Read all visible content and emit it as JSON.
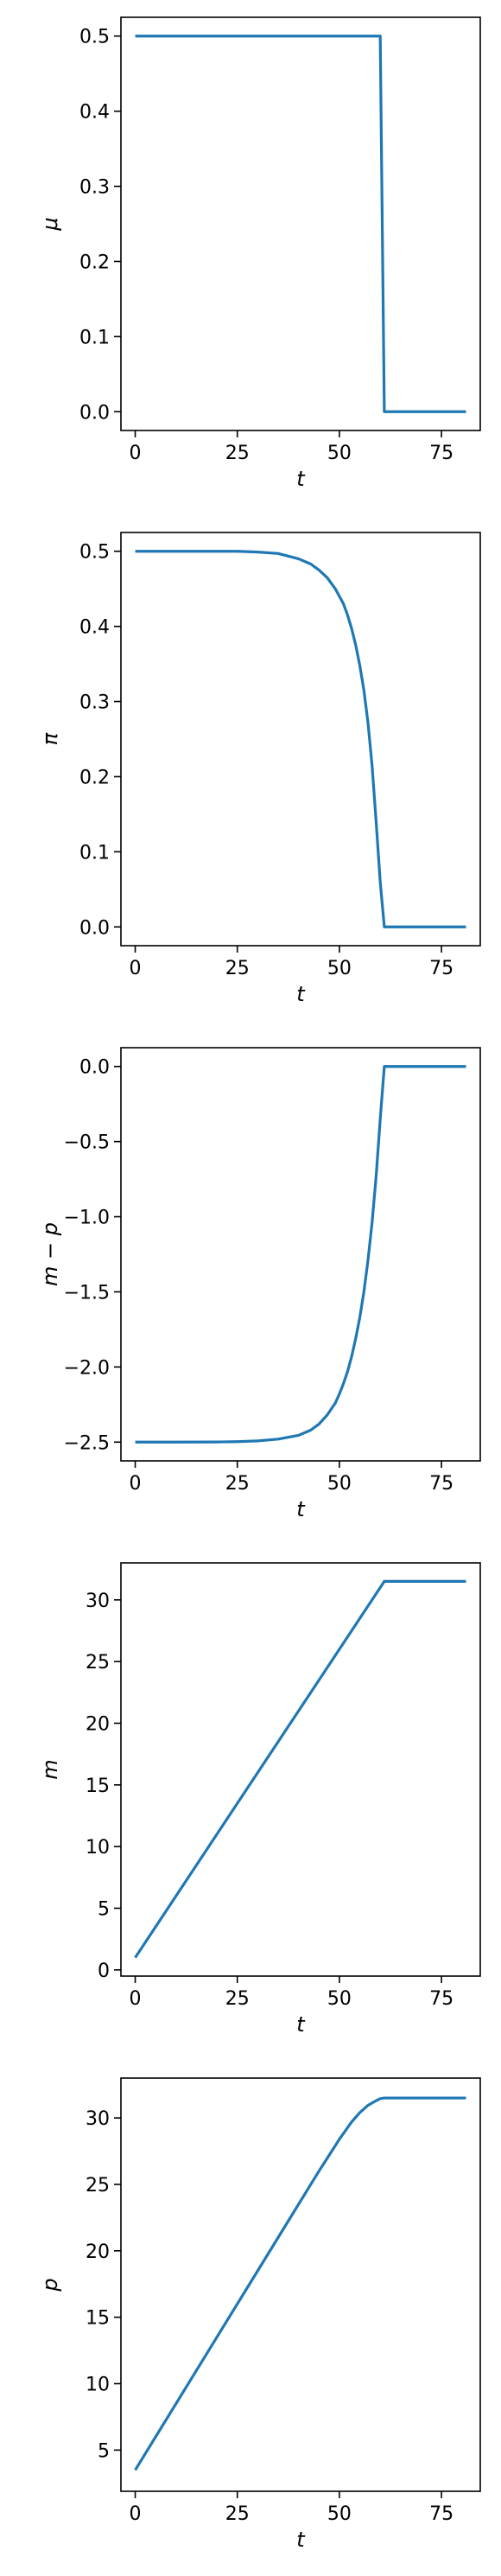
{
  "chart_data": [
    {
      "type": "line",
      "title": "",
      "xlabel": "t",
      "ylabel": "μ",
      "xlim": [
        -3.5,
        84.5
      ],
      "ylim": [
        -0.025,
        0.525
      ],
      "xticks": [
        0,
        25,
        50,
        75
      ],
      "xtick_labels": [
        "0",
        "25",
        "50",
        "75"
      ],
      "yticks": [
        0.0,
        0.1,
        0.2,
        0.3,
        0.4,
        0.5
      ],
      "ytick_labels": [
        "0.0",
        "0.1",
        "0.2",
        "0.3",
        "0.4",
        "0.5"
      ],
      "color": "#1f77b4",
      "series": [
        {
          "x": [
            0,
            60,
            61,
            81
          ],
          "y": [
            0.5,
            0.5,
            0.0,
            0.0
          ]
        }
      ]
    },
    {
      "type": "line",
      "title": "",
      "xlabel": "t",
      "ylabel": "π",
      "xlim": [
        -3.5,
        84.5
      ],
      "ylim": [
        -0.025,
        0.525
      ],
      "xticks": [
        0,
        25,
        50,
        75
      ],
      "xtick_labels": [
        "0",
        "25",
        "50",
        "75"
      ],
      "yticks": [
        0.0,
        0.1,
        0.2,
        0.3,
        0.4,
        0.5
      ],
      "ytick_labels": [
        "0.0",
        "0.1",
        "0.2",
        "0.3",
        "0.4",
        "0.5"
      ],
      "color": "#1f77b4",
      "series": [
        {
          "x": [
            0,
            10,
            20,
            25,
            30,
            35,
            40,
            43,
            45,
            47,
            49,
            50,
            51,
            52,
            53,
            54,
            55,
            56,
            57,
            58,
            59,
            60,
            61,
            81
          ],
          "y": [
            0.5,
            0.5,
            0.5,
            0.5,
            0.499,
            0.497,
            0.49,
            0.483,
            0.475,
            0.465,
            0.45,
            0.44,
            0.43,
            0.415,
            0.397,
            0.375,
            0.348,
            0.315,
            0.272,
            0.215,
            0.14,
            0.06,
            0.0,
            0.0
          ]
        }
      ]
    },
    {
      "type": "line",
      "title": "",
      "xlabel": "t",
      "ylabel": "m − p",
      "xlim": [
        -3.5,
        84.5
      ],
      "ylim": [
        -2.625,
        0.125
      ],
      "xticks": [
        0,
        25,
        50,
        75
      ],
      "xtick_labels": [
        "0",
        "25",
        "50",
        "75"
      ],
      "yticks": [
        -2.5,
        -2.0,
        -1.5,
        -1.0,
        -0.5,
        0.0
      ],
      "ytick_labels": [
        "−2.5",
        "−2.0",
        "−1.5",
        "−1.0",
        "−0.5",
        "0.0"
      ],
      "color": "#1f77b4",
      "series": [
        {
          "x": [
            0,
            10,
            20,
            25,
            30,
            35,
            40,
            43,
            45,
            47,
            49,
            50,
            51,
            52,
            53,
            54,
            55,
            56,
            57,
            58,
            59,
            60,
            61,
            81
          ],
          "y": [
            -2.5,
            -2.5,
            -2.499,
            -2.497,
            -2.492,
            -2.48,
            -2.455,
            -2.42,
            -2.38,
            -2.32,
            -2.24,
            -2.18,
            -2.11,
            -2.03,
            -1.93,
            -1.81,
            -1.67,
            -1.5,
            -1.29,
            -1.04,
            -0.73,
            -0.35,
            0.0,
            0.0
          ]
        }
      ]
    },
    {
      "type": "line",
      "title": "",
      "xlabel": "t",
      "ylabel": "m",
      "xlim": [
        -3.5,
        84.5
      ],
      "ylim": [
        -0.5,
        33.0
      ],
      "xticks": [
        0,
        25,
        50,
        75
      ],
      "xtick_labels": [
        "0",
        "25",
        "50",
        "75"
      ],
      "yticks": [
        0,
        5,
        10,
        15,
        20,
        25,
        30
      ],
      "ytick_labels": [
        "0",
        "5",
        "10",
        "15",
        "20",
        "25",
        "30"
      ],
      "color": "#1f77b4",
      "series": [
        {
          "x": [
            0,
            61,
            81
          ],
          "y": [
            1.0,
            31.5,
            31.5
          ]
        }
      ]
    },
    {
      "type": "line",
      "title": "",
      "xlabel": "t",
      "ylabel": "p",
      "xlim": [
        -3.5,
        84.5
      ],
      "ylim": [
        1.9,
        33.0
      ],
      "xticks": [
        0,
        25,
        50,
        75
      ],
      "xtick_labels": [
        "0",
        "25",
        "50",
        "75"
      ],
      "yticks": [
        5,
        10,
        15,
        20,
        25,
        30
      ],
      "ytick_labels": [
        "5",
        "10",
        "15",
        "20",
        "25",
        "30"
      ],
      "color": "#1f77b4",
      "series": [
        {
          "x": [
            0,
            10,
            20,
            30,
            40,
            45,
            50,
            53,
            55,
            57,
            59,
            60,
            61,
            81
          ],
          "y": [
            3.5,
            8.5,
            13.5,
            18.5,
            23.5,
            26.0,
            28.4,
            29.7,
            30.4,
            30.95,
            31.3,
            31.45,
            31.5,
            31.5
          ]
        }
      ]
    }
  ]
}
